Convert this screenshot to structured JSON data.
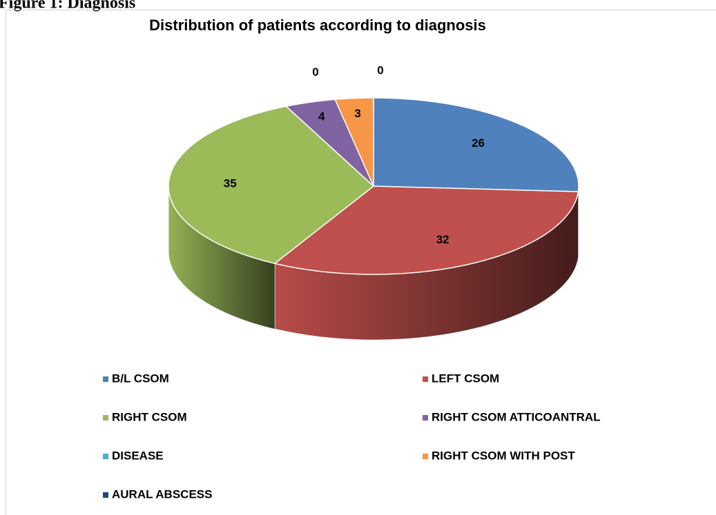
{
  "figure_label": "Figure 1: Diagnosis",
  "chart_data": {
    "type": "pie",
    "title": "Distribution of patients according to diagnosis",
    "categories": [
      "B/L CSOM",
      "LEFT CSOM",
      "RIGHT CSOM",
      "RIGHT CSOM ATTICOANTRAL",
      "DISEASE",
      "RIGHT CSOM WITH POST",
      "AURAL ABSCESS"
    ],
    "values": [
      26,
      32,
      35,
      4,
      0,
      3,
      0
    ],
    "colors": [
      "#4f81bd",
      "#c0504d",
      "#9bbb59",
      "#8064a2",
      "#4bacc6",
      "#f79646",
      "#1f497d"
    ],
    "legend": "bottom"
  }
}
